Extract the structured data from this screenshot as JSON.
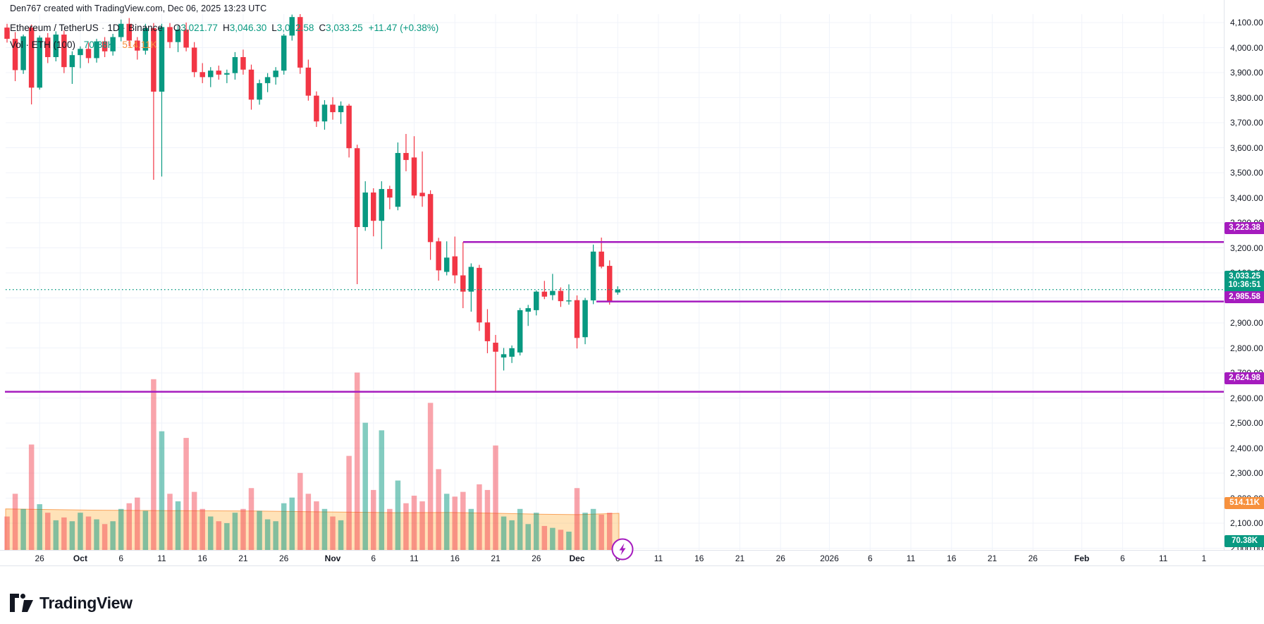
{
  "watermark": "Den767 created with TradingView.com, Dec 06, 2025 13:23 UTC",
  "legend": {
    "symbol": "Ethereum / TetherUS",
    "interval": "1D",
    "exchange": "Binance",
    "sep": "·",
    "o_label": "O",
    "o": "3,021.77",
    "h_label": "H",
    "h": "3,046.30",
    "l_label": "L",
    "l": "3,012.58",
    "c_label": "C",
    "c": "3,033.25",
    "change": "+11.47 (+0.38%)",
    "volume_label": "Vol · ETH (100)",
    "volume_current": "70.38K",
    "volume_ma": "514.11K"
  },
  "colors": {
    "up": "#089981",
    "down": "#F23645",
    "vol_up": "rgba(8,153,129,0.5)",
    "vol_down": "rgba(242,54,69,0.45)",
    "ma_fill": "rgba(255,152,0,0.28)",
    "ma_stroke": "rgba(247,145,61,0.8)",
    "purple": "#A51BBE",
    "orange": "#F7913D",
    "grid": "#F0F3FA",
    "axis_border": "#E0E3EB",
    "text": "#131722"
  },
  "attribution": {
    "logo_text": "TradingView"
  },
  "chart_data": {
    "type": "candlestick",
    "title": "Ethereum / TetherUS · 1D · Binance",
    "ylim": [
      2000,
      4100
    ],
    "price_grid_step": 100,
    "legend_position": "top-left",
    "grid": true,
    "price_ticks": [
      "4,100.00",
      "4,000.00",
      "3,900.00",
      "3,800.00",
      "3,700.00",
      "3,600.00",
      "3,500.00",
      "3,400.00",
      "3,300.00",
      "3,200.00",
      "3,100.00",
      "3,000.00",
      "2,900.00",
      "2,800.00",
      "2,700.00",
      "2,600.00",
      "2,500.00",
      "2,400.00",
      "2,300.00",
      "2,200.00",
      "2,100.00",
      "2,000.00"
    ],
    "time_ticks": [
      [
        "26",
        4
      ],
      [
        "Oct",
        9
      ],
      [
        "6",
        14
      ],
      [
        "11",
        19
      ],
      [
        "16",
        24
      ],
      [
        "21",
        29
      ],
      [
        "26",
        34
      ],
      [
        "Nov",
        40
      ],
      [
        "6",
        45
      ],
      [
        "11",
        50
      ],
      [
        "16",
        55
      ],
      [
        "21",
        60
      ],
      [
        "26",
        65
      ],
      [
        "Dec",
        70
      ],
      [
        "6",
        75
      ],
      [
        "11",
        80
      ],
      [
        "16",
        85
      ],
      [
        "21",
        90
      ],
      [
        "26",
        95
      ],
      [
        "2026",
        101
      ],
      [
        "6",
        106
      ],
      [
        "11",
        111
      ],
      [
        "16",
        116
      ],
      [
        "21",
        121
      ],
      [
        "26",
        126
      ],
      [
        "Feb",
        132
      ],
      [
        "6",
        137
      ],
      [
        "11",
        142
      ],
      [
        "1",
        147
      ]
    ],
    "columns": [
      "date",
      "open",
      "high",
      "low",
      "close",
      "volume_K"
    ],
    "candles": [
      [
        "Sep 22",
        4080,
        4095,
        4020,
        4035,
        480
      ],
      [
        "Sep 23",
        4035,
        4062,
        3866,
        3910,
        720
      ],
      [
        "Sep 24",
        3910,
        4052,
        3895,
        4045,
        560
      ],
      [
        "Sep 25",
        4080,
        4092,
        3773,
        3840,
        1240
      ],
      [
        "Sep 26",
        3840,
        4048,
        3832,
        4040,
        610
      ],
      [
        "Sep 27",
        4040,
        4058,
        3938,
        3962,
        520
      ],
      [
        "Sep 28",
        3962,
        4065,
        3945,
        4052,
        440
      ],
      [
        "Sep 29",
        4052,
        4068,
        3898,
        3922,
        470
      ],
      [
        "Sep 30",
        3922,
        3985,
        3855,
        3970,
        430
      ],
      [
        "Oct 1",
        3970,
        4005,
        3918,
        3995,
        520
      ],
      [
        "Oct 2",
        3995,
        4020,
        3938,
        3958,
        480
      ],
      [
        "Oct 3",
        3958,
        4035,
        3940,
        4025,
        450
      ],
      [
        "Oct 4",
        4025,
        4042,
        3962,
        3985,
        400
      ],
      [
        "Oct 5",
        3985,
        4055,
        3968,
        4042,
        430
      ],
      [
        "Oct 6",
        4042,
        4112,
        4025,
        4095,
        560
      ],
      [
        "Oct 7",
        4095,
        4118,
        4005,
        4028,
        620
      ],
      [
        "Oct 8",
        4028,
        4042,
        3952,
        3988,
        680
      ],
      [
        "Oct 9",
        3988,
        4095,
        3972,
        4078,
        540
      ],
      [
        "Oct 10",
        4078,
        4098,
        3472,
        3824,
        1930
      ],
      [
        "Oct 11",
        3824,
        4095,
        3485,
        4082,
        1380
      ],
      [
        "Oct 12",
        4082,
        4098,
        3998,
        4022,
        720
      ],
      [
        "Oct 13",
        4022,
        4088,
        3982,
        4072,
        640
      ],
      [
        "Oct 14",
        4072,
        4100,
        3985,
        4000,
        1310
      ],
      [
        "Oct 15",
        4000,
        4022,
        3882,
        3902,
        740
      ],
      [
        "Oct 16",
        3902,
        3938,
        3858,
        3882,
        560
      ],
      [
        "Oct 17",
        3882,
        3922,
        3842,
        3908,
        480
      ],
      [
        "Oct 18",
        3908,
        3928,
        3872,
        3892,
        430
      ],
      [
        "Oct 19",
        3892,
        3912,
        3858,
        3898,
        410
      ],
      [
        "Oct 20",
        3898,
        3982,
        3872,
        3962,
        520
      ],
      [
        "Oct 21",
        3962,
        3992,
        3892,
        3912,
        560
      ],
      [
        "Oct 22",
        3912,
        3932,
        3752,
        3792,
        780
      ],
      [
        "Oct 23",
        3792,
        3872,
        3772,
        3858,
        540
      ],
      [
        "Oct 24",
        3858,
        3898,
        3822,
        3882,
        450
      ],
      [
        "Oct 25",
        3882,
        3922,
        3852,
        3908,
        430
      ],
      [
        "Oct 26",
        3908,
        4055,
        3892,
        4048,
        620
      ],
      [
        "Oct 27",
        4048,
        4132,
        4028,
        4122,
        680
      ],
      [
        "Oct 28",
        4122,
        4138,
        3895,
        3920,
        940
      ],
      [
        "Oct 29",
        3920,
        3952,
        3788,
        3808,
        720
      ],
      [
        "Oct 30",
        3808,
        3825,
        3683,
        3705,
        640
      ],
      [
        "Oct 31",
        3705,
        3790,
        3672,
        3772,
        560
      ],
      [
        "Nov 1",
        3772,
        3802,
        3712,
        3742,
        480
      ],
      [
        "Nov 2",
        3742,
        3785,
        3695,
        3768,
        440
      ],
      [
        "Nov 3",
        3768,
        3775,
        3561,
        3598,
        1120
      ],
      [
        "Nov 4",
        3598,
        3612,
        3055,
        3283,
        2000
      ],
      [
        "Nov 5",
        3283,
        3466,
        3268,
        3421,
        1470
      ],
      [
        "Nov 6",
        3421,
        3438,
        3246,
        3308,
        760
      ],
      [
        "Nov 7",
        3308,
        3466,
        3195,
        3435,
        1390
      ],
      [
        "Nov 8",
        3435,
        3448,
        3354,
        3401,
        560
      ],
      [
        "Nov 9",
        3364,
        3621,
        3350,
        3579,
        860
      ],
      [
        "Nov 10",
        3579,
        3655,
        3506,
        3551,
        620
      ],
      [
        "Nov 11",
        3561,
        3646,
        3398,
        3409,
        700
      ],
      [
        "Nov 12",
        3420,
        3585,
        3364,
        3406,
        640
      ],
      [
        "Nov 13",
        3415,
        3430,
        3152,
        3223,
        1680
      ],
      [
        "Nov 14",
        3226,
        3240,
        3069,
        3110,
        980
      ],
      [
        "Nov 15",
        3104,
        3226,
        3090,
        3161,
        720
      ],
      [
        "Nov 16",
        3166,
        3245,
        3058,
        3090,
        690
      ],
      [
        "Nov 17",
        3090,
        3223,
        2959,
        3025,
        740
      ],
      [
        "Nov 18",
        3025,
        3138,
        2945,
        3124,
        560
      ],
      [
        "Nov 19",
        3120,
        3132,
        2868,
        2902,
        820
      ],
      [
        "Nov 20",
        2902,
        2955,
        2779,
        2827,
        760
      ],
      [
        "Nov 21",
        2821,
        2852,
        2625,
        2785,
        1230
      ],
      [
        "Nov 22",
        2762,
        2800,
        2710,
        2775,
        480
      ],
      [
        "Nov 23",
        2765,
        2810,
        2740,
        2799,
        440
      ],
      [
        "Nov 24",
        2782,
        2960,
        2770,
        2951,
        560
      ],
      [
        "Nov 25",
        2945,
        2972,
        2888,
        2959,
        400
      ],
      [
        "Nov 26",
        2951,
        3030,
        2930,
        3025,
        520
      ],
      [
        "Nov 27",
        3025,
        3068,
        2995,
        3005,
        380
      ],
      [
        "Nov 28",
        3011,
        3096,
        2991,
        3028,
        360
      ],
      [
        "Nov 29",
        3028,
        3042,
        2964,
        2987,
        340
      ],
      [
        "Nov 30",
        2987,
        3054,
        2973,
        2990,
        320
      ],
      [
        "Dec 1",
        2991,
        3010,
        2798,
        2840,
        780
      ],
      [
        "Dec 2",
        2843,
        3000,
        2815,
        2991,
        520
      ],
      [
        "Dec 3",
        2990,
        3213,
        2975,
        3185,
        560
      ],
      [
        "Dec 4",
        3185,
        3241,
        3118,
        3125,
        500
      ],
      [
        "Dec 5",
        3128,
        3150,
        2973,
        2987,
        520
      ],
      [
        "Dec 6",
        3021.77,
        3046.3,
        3012.58,
        3033.25,
        70.38
      ]
    ],
    "levels": [
      {
        "price": 3223.38,
        "label": "3,223.38",
        "x_start": 657
      },
      {
        "price": 2985.58,
        "label": "2,985.58",
        "x_start": 846
      },
      {
        "price": 2624.98,
        "label": "2,624.98",
        "x_start": 7
      }
    ],
    "current_price": {
      "price": 3033.25,
      "label": "3,033.25",
      "countdown": "10:36:51"
    },
    "volume": {
      "current_label": "70.38K",
      "ma_label": "514.11K",
      "ma_points_K": [
        [
          8,
          560
        ],
        [
          120,
          548
        ],
        [
          240,
          542
        ],
        [
          360,
          538
        ],
        [
          470,
          528
        ],
        [
          560,
          520
        ],
        [
          640,
          522
        ],
        [
          700,
          515
        ],
        [
          760,
          505
        ],
        [
          820,
          500
        ],
        [
          878,
          514
        ]
      ]
    }
  }
}
